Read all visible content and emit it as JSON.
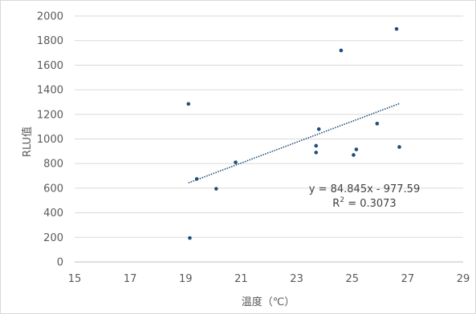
{
  "chart_data": {
    "type": "scatter",
    "xlabel": "温度（℃）",
    "ylabel": "RLU值",
    "xlim": [
      15,
      29
    ],
    "ylim": [
      0,
      2000
    ],
    "x_ticks": [
      15,
      17,
      19,
      21,
      23,
      25,
      27,
      29
    ],
    "y_ticks": [
      0,
      200,
      400,
      600,
      800,
      1000,
      1200,
      1400,
      1600,
      1800,
      2000
    ],
    "grid": "horizontal",
    "marker_color": "#1f4e79",
    "trendline_color": "#1f4e79",
    "points": [
      {
        "x": 19.1,
        "y": 1285
      },
      {
        "x": 19.15,
        "y": 195
      },
      {
        "x": 19.4,
        "y": 675
      },
      {
        "x": 20.1,
        "y": 595
      },
      {
        "x": 20.8,
        "y": 810
      },
      {
        "x": 23.7,
        "y": 945
      },
      {
        "x": 23.7,
        "y": 890
      },
      {
        "x": 23.8,
        "y": 1080
      },
      {
        "x": 24.6,
        "y": 1720
      },
      {
        "x": 25.05,
        "y": 870
      },
      {
        "x": 25.15,
        "y": 915
      },
      {
        "x": 25.9,
        "y": 1125
      },
      {
        "x": 26.6,
        "y": 1895
      },
      {
        "x": 26.7,
        "y": 935
      }
    ],
    "trendline": {
      "type": "linear",
      "slope": 84.845,
      "intercept": -977.59,
      "x_range": [
        19.1,
        26.7
      ],
      "equation": "y = 84.845x - 977.59",
      "r2_label": "R",
      "r2_sup": "2",
      "r2_value": " = 0.3073"
    }
  }
}
